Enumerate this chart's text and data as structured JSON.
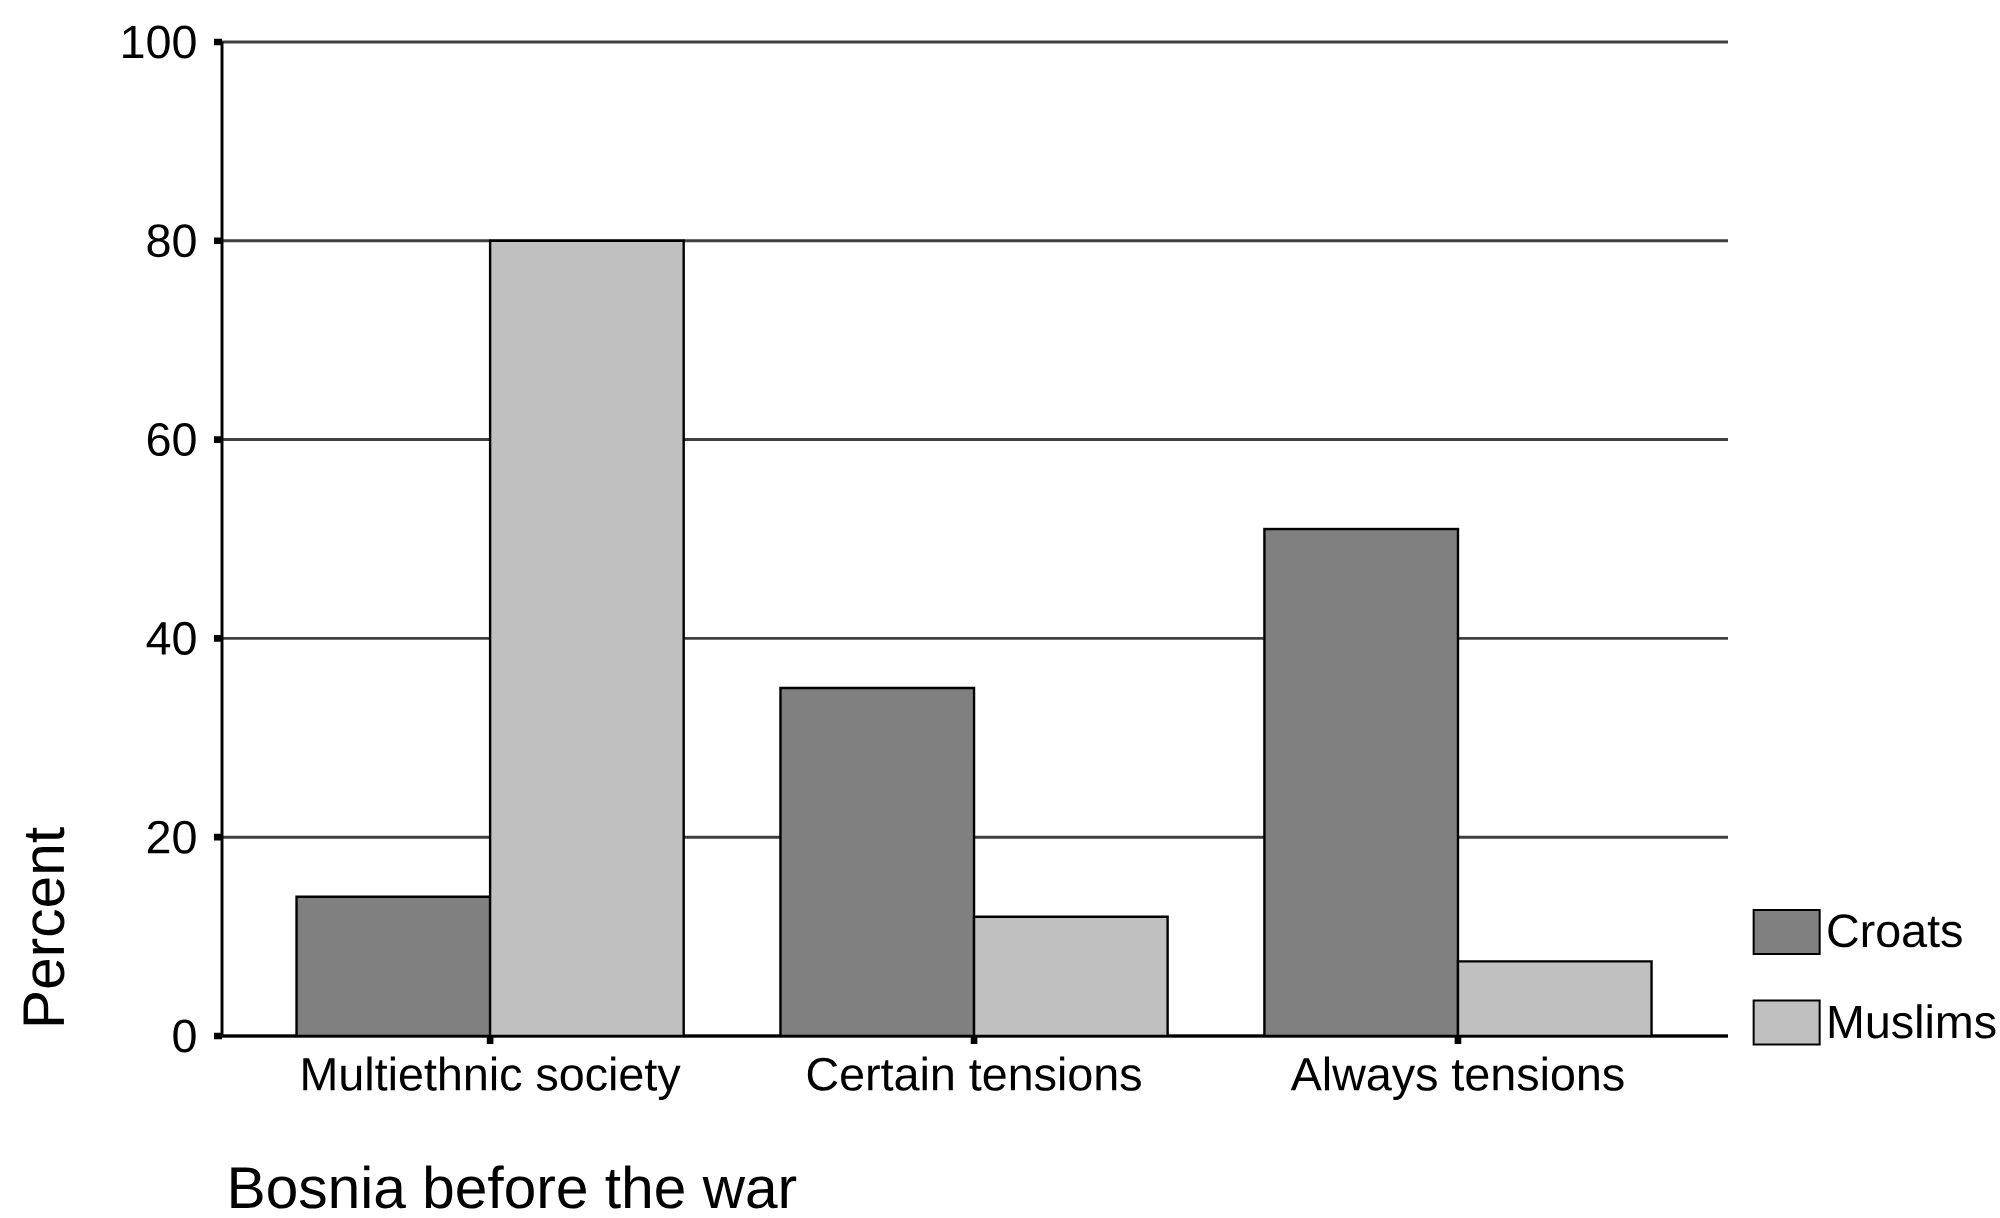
{
  "chart_data": {
    "type": "bar",
    "categories": [
      "Multiethnic society",
      "Certain tensions",
      "Always tensions"
    ],
    "series": [
      {
        "name": "Croats",
        "color": "#808080",
        "values": [
          14,
          35,
          51
        ]
      },
      {
        "name": "Muslims",
        "color": "#c0c0c0",
        "values": [
          80,
          12,
          7.5
        ]
      }
    ],
    "xlabel": "Bosnia before the war",
    "ylabel": "Percent",
    "ylim": [
      0,
      100
    ],
    "yticks": [
      0,
      20,
      40,
      60,
      80,
      100
    ],
    "grid": "y",
    "legend": "bottom right"
  }
}
